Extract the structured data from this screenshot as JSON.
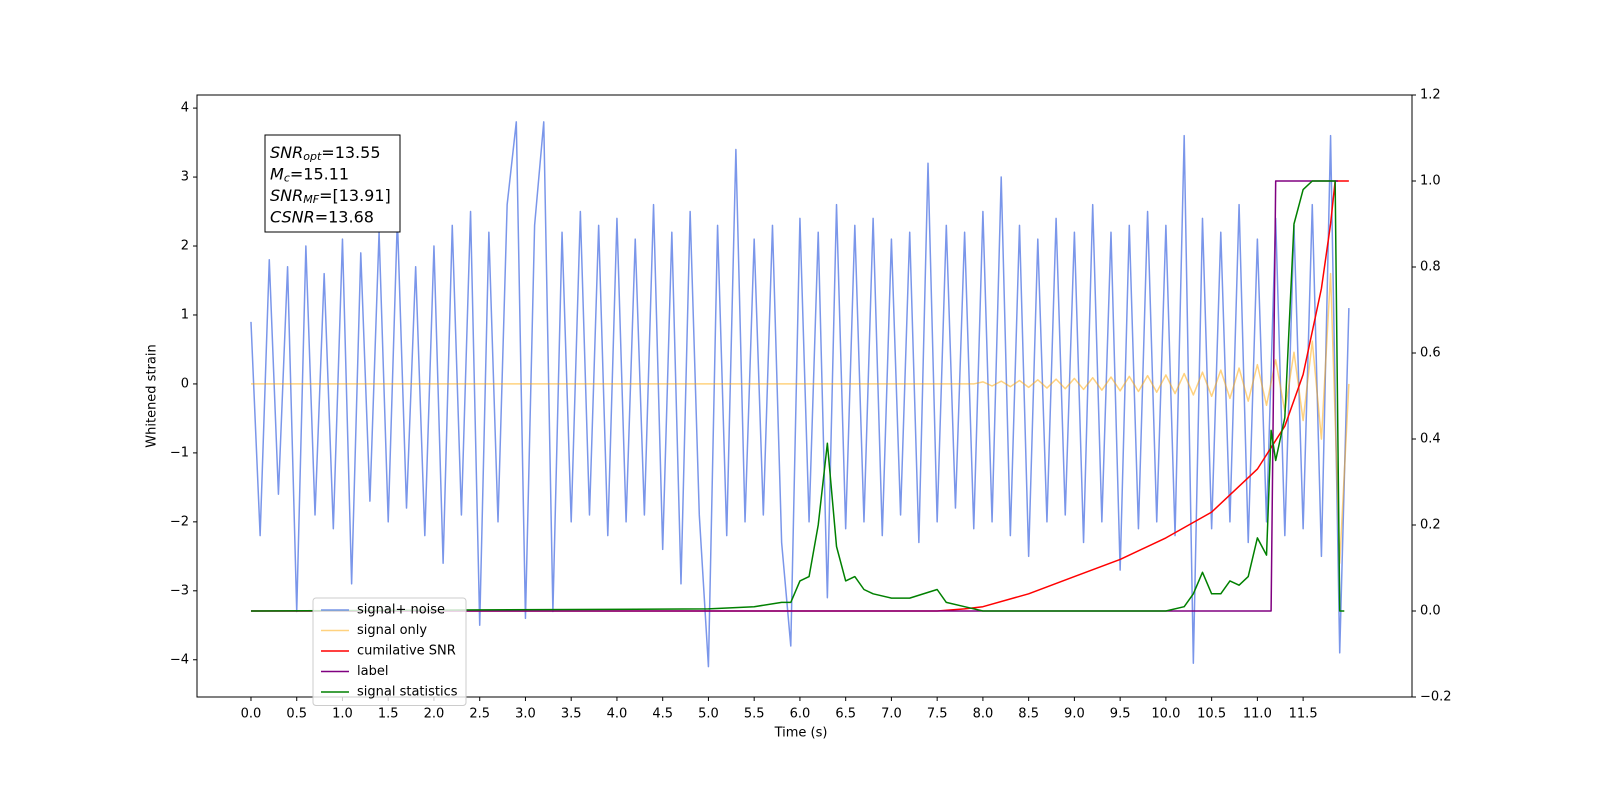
{
  "chart_data": {
    "type": "line",
    "xlabel": "Time (s)",
    "ylabel": "Whitened strain",
    "xlim": [
      -0.59,
      12.69
    ],
    "ylim": [
      -4.54,
      4.19
    ],
    "y2lim": [
      -0.2,
      1.2
    ],
    "xticks": [
      {
        "value": 0,
        "label": "0.0"
      },
      0.5,
      {
        "value": 1,
        "label": "1.0"
      },
      1.5,
      {
        "value": 2,
        "label": "2.0"
      },
      2.5,
      {
        "value": 3,
        "label": "3.0"
      },
      3.5,
      {
        "value": 4,
        "label": "4.0"
      },
      4.5,
      {
        "value": 5,
        "label": "5.0"
      },
      5.5,
      {
        "value": 6,
        "label": "6.0"
      },
      6.5,
      {
        "value": 7,
        "label": "7.0"
      },
      7.5,
      {
        "value": 8,
        "label": "8.0"
      },
      8.5,
      {
        "value": 9,
        "label": "9.0"
      },
      9.5,
      {
        "value": 10,
        "label": "10.0"
      },
      10.5,
      {
        "value": 11,
        "label": "11.0"
      },
      11.5
    ],
    "yticks": [
      {
        "value": -4,
        "label": "−4"
      },
      {
        "value": -3,
        "label": "−3"
      },
      {
        "value": -2,
        "label": "−2"
      },
      {
        "value": -1,
        "label": "−1"
      },
      0,
      1,
      2,
      3,
      4
    ],
    "y2ticks": [
      {
        "value": -0.2,
        "label": "−0.2"
      },
      {
        "value": 0,
        "label": "0.0"
      },
      0.2,
      0.4,
      0.6,
      0.8,
      {
        "value": 1,
        "label": "1.0"
      },
      1.2
    ],
    "legend": "lower left",
    "annotations": [
      [
        "SNR",
        "opt",
        "=13.55"
      ],
      [
        "M",
        "c",
        "=15.11"
      ],
      [
        "SNR",
        "MF",
        "=[13.91]"
      ],
      [
        "CSNR",
        "",
        "=13.68"
      ]
    ],
    "x": [
      0,
      0.1,
      0.2,
      0.3,
      0.4,
      0.5,
      0.6,
      0.7,
      0.8,
      0.9,
      1,
      1.1,
      1.2,
      1.3,
      1.4,
      1.5,
      1.6,
      1.7,
      1.8,
      1.9,
      2,
      2.1,
      2.2,
      2.3,
      2.4,
      2.5,
      2.6,
      2.7,
      2.8,
      2.9,
      3,
      3.1,
      3.2,
      3.3,
      3.4,
      3.5,
      3.6,
      3.7,
      3.8,
      3.9,
      4,
      4.1,
      4.2,
      4.3,
      4.4,
      4.5,
      4.6,
      4.7,
      4.8,
      4.9,
      5,
      5.1,
      5.2,
      5.3,
      5.4,
      5.5,
      5.6,
      5.7,
      5.8,
      5.9,
      6,
      6.1,
      6.2,
      6.3,
      6.4,
      6.5,
      6.6,
      6.7,
      6.8,
      6.9,
      7,
      7.1,
      7.2,
      7.3,
      7.4,
      7.5,
      7.6,
      7.7,
      7.8,
      7.9,
      8,
      8.1,
      8.2,
      8.3,
      8.4,
      8.5,
      8.6,
      8.7,
      8.8,
      8.9,
      9,
      9.1,
      9.2,
      9.3,
      9.4,
      9.5,
      9.6,
      9.7,
      9.8,
      9.9,
      10,
      10.1,
      10.2,
      10.3,
      10.4,
      10.5,
      10.6,
      10.7,
      10.8,
      10.9,
      11,
      11.1,
      11.2,
      11.3,
      11.4,
      11.5,
      11.6,
      11.7,
      11.8,
      11.9,
      12
    ],
    "series": [
      {
        "name": "signal+ noise",
        "color": "#4169e1",
        "opacity": 0.7,
        "values": [
          0.9,
          -2.2,
          1.8,
          -1.6,
          1.7,
          -3.3,
          2.0,
          -1.9,
          1.6,
          -2.1,
          2.1,
          -2.9,
          1.9,
          -1.7,
          2.2,
          -2.0,
          2.4,
          -1.8,
          1.7,
          -2.2,
          2.0,
          -2.6,
          2.3,
          -1.9,
          2.5,
          -3.5,
          2.2,
          -2.0,
          2.6,
          3.8,
          -3.4,
          2.3,
          3.8,
          -3.3,
          2.2,
          -2.0,
          2.5,
          -1.9,
          2.3,
          -2.2,
          2.4,
          -2.0,
          2.1,
          -1.9,
          2.6,
          -2.4,
          2.2,
          -2.9,
          2.5,
          -1.9,
          -4.1,
          2.3,
          -2.2,
          3.4,
          -2.0,
          2.1,
          -1.9,
          2.3,
          -2.3,
          -3.8,
          2.4,
          -2.0,
          2.2,
          -3.1,
          2.6,
          -2.1,
          2.3,
          -2.0,
          2.4,
          -2.2,
          2.1,
          -1.9,
          2.2,
          -2.3,
          3.2,
          -2.0,
          2.3,
          -1.8,
          2.2,
          -2.1,
          2.5,
          -2.0,
          3.0,
          -2.2,
          2.3,
          -2.5,
          2.1,
          -2.0,
          2.4,
          -1.9,
          2.2,
          -2.3,
          2.6,
          -2.0,
          2.2,
          -2.7,
          2.3,
          -2.1,
          2.5,
          -2.0,
          2.3,
          -2.2,
          3.6,
          -4.05,
          2.4,
          -2.1,
          2.2,
          -2.0,
          2.6,
          -2.3,
          2.1,
          -2.0,
          2.4,
          -2.2,
          2.3,
          -2.1,
          2.6,
          -2.5,
          3.6,
          -3.9,
          1.1
        ]
      },
      {
        "name": "signal only",
        "color": "#ffa500",
        "opacity": 0.5,
        "values": [
          0,
          0,
          0,
          0,
          0,
          0,
          0,
          0,
          0,
          0,
          0,
          0,
          0,
          0,
          0,
          0,
          0,
          0,
          0,
          0,
          0,
          0,
          0,
          0,
          0,
          0,
          0,
          0,
          0,
          0,
          0,
          0,
          0,
          0,
          0,
          0,
          0,
          0,
          0,
          0,
          0,
          0,
          0,
          0,
          0,
          0,
          0,
          0,
          0,
          0,
          0,
          0,
          0,
          0,
          0,
          0,
          0,
          0,
          0,
          0,
          0,
          0,
          0,
          0,
          0,
          0,
          0,
          0,
          0,
          0,
          0,
          0,
          0,
          0,
          0,
          0,
          0,
          0,
          0,
          0,
          0.03,
          -0.03,
          0.04,
          -0.04,
          0.05,
          -0.05,
          0.06,
          -0.06,
          0.07,
          -0.07,
          0.08,
          -0.08,
          0.09,
          -0.09,
          0.1,
          -0.1,
          0.11,
          -0.11,
          0.12,
          -0.12,
          0.13,
          -0.14,
          0.15,
          -0.16,
          0.17,
          -0.18,
          0.2,
          -0.21,
          0.23,
          -0.25,
          0.28,
          -0.31,
          0.35,
          -0.4,
          0.46,
          -0.53,
          0.62,
          -0.8,
          1.6,
          -2.6,
          0
        ]
      },
      {
        "name": "cumilative SNR",
        "color": "#ff0000",
        "axis": "y2",
        "x": [
          0,
          7.5,
          7.8,
          8,
          8.5,
          9,
          9.5,
          10,
          10.5,
          11,
          11.3,
          11.5,
          11.7,
          11.8,
          11.85,
          12
        ],
        "values": [
          0,
          0,
          0.005,
          0.01,
          0.04,
          0.08,
          0.12,
          0.17,
          0.23,
          0.33,
          0.43,
          0.55,
          0.75,
          0.9,
          1,
          1
        ]
      },
      {
        "name": "label",
        "color": "#800080",
        "axis": "y2",
        "x": [
          0,
          11.15,
          11.2,
          11.88
        ],
        "values": [
          0,
          0,
          1,
          1
        ]
      },
      {
        "name": "signal statistics",
        "color": "#008000",
        "axis": "y2",
        "x": [
          0,
          5,
          5.5,
          5.8,
          5.9,
          6,
          6.1,
          6.2,
          6.3,
          6.4,
          6.5,
          6.6,
          6.7,
          6.8,
          7,
          7.2,
          7.5,
          7.6,
          7.8,
          8,
          10,
          10.2,
          10.3,
          10.4,
          10.5,
          10.6,
          10.7,
          10.8,
          10.9,
          11,
          11.1,
          11.15,
          11.2,
          11.3,
          11.4,
          11.5,
          11.6,
          11.85,
          11.9,
          11.95
        ],
        "values": [
          0,
          0.005,
          0.01,
          0.02,
          0.02,
          0.07,
          0.08,
          0.2,
          0.39,
          0.15,
          0.07,
          0.08,
          0.05,
          0.04,
          0.03,
          0.03,
          0.05,
          0.02,
          0.01,
          0,
          0,
          0.01,
          0.04,
          0.09,
          0.04,
          0.04,
          0.07,
          0.06,
          0.08,
          0.17,
          0.13,
          0.42,
          0.35,
          0.45,
          0.9,
          0.98,
          1,
          1,
          0,
          0
        ]
      }
    ]
  }
}
